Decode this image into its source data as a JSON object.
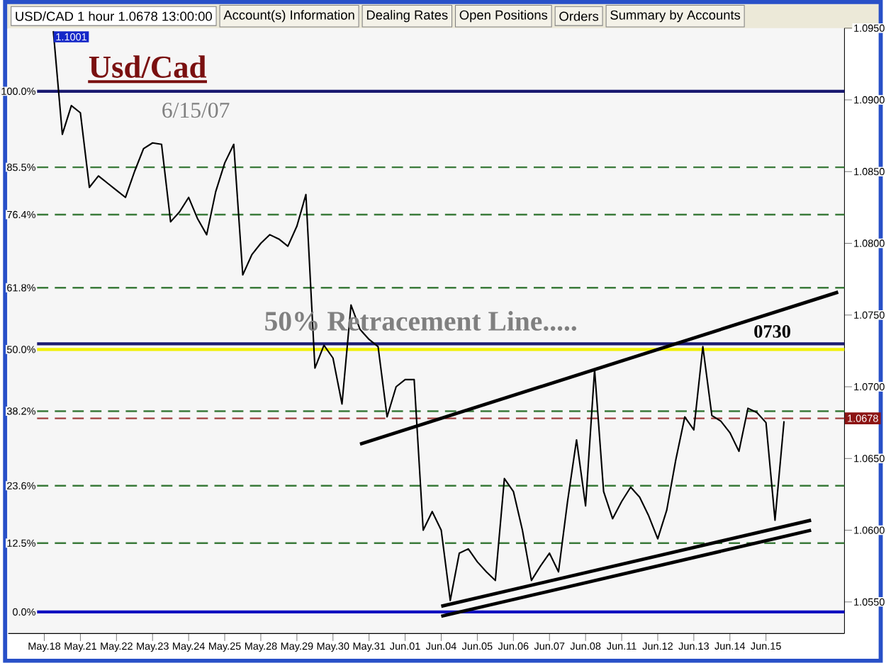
{
  "chart_data": {
    "type": "line",
    "title": "USD/CAD 1 hour 1.0678 13:00:00",
    "categories": [
      "May.18",
      null,
      null,
      null,
      "May.21",
      null,
      null,
      null,
      "May.22",
      null,
      null,
      null,
      "May.23",
      null,
      null,
      null,
      "May.24",
      null,
      null,
      null,
      "May.25",
      null,
      null,
      null,
      "May.28",
      null,
      null,
      null,
      "May.29",
      null,
      null,
      null,
      "May.30",
      null,
      null,
      null,
      "May.31",
      null,
      null,
      null,
      "Jun.01",
      null,
      null,
      null,
      "Jun.04",
      null,
      null,
      null,
      "Jun.05",
      null,
      null,
      null,
      "Jun.06",
      null,
      null,
      null,
      "Jun.07",
      null,
      null,
      null,
      "Jun.08",
      null,
      null,
      null,
      "Jun.11",
      null,
      null,
      null,
      "Jun.12",
      null,
      null,
      null,
      "Jun.13",
      null,
      null,
      null,
      "Jun.14",
      null,
      null,
      null,
      "Jun.15",
      null,
      null,
      null,
      null,
      null,
      null,
      null,
      null
    ],
    "series": [
      {
        "color": "#000000",
        "values": [
          null,
          1.0948,
          1.0876,
          1.0896,
          1.0891,
          1.0839,
          1.0847,
          1.0842,
          1.0837,
          1.0832,
          1.085,
          1.0866,
          1.087,
          1.0869,
          1.0815,
          1.0822,
          1.0832,
          1.0817,
          1.0806,
          1.0836,
          1.0856,
          1.0869,
          1.0778,
          1.0792,
          1.08,
          1.0806,
          1.0803,
          1.0798,
          1.0812,
          1.0834,
          1.0713,
          1.0729,
          1.072,
          1.0688,
          1.0757,
          1.074,
          1.0733,
          1.0728,
          1.0679,
          1.07,
          1.0705,
          1.0705,
          1.06,
          1.0613,
          1.06,
          1.0551,
          1.0584,
          1.0587,
          1.0578,
          1.0571,
          1.0565,
          1.0636,
          1.0627,
          1.06,
          1.0565,
          1.0575,
          1.0584,
          1.0571,
          1.062,
          1.0663,
          1.0617,
          1.0712,
          1.0627,
          1.0608,
          1.062,
          1.063,
          1.0623,
          1.061,
          1.0594,
          1.0614,
          1.0649,
          1.0679,
          1.067,
          1.0728,
          1.068,
          1.0676,
          1.0668,
          1.0655,
          1.0685,
          1.0682,
          1.0675,
          1.0607,
          1.0676,
          null,
          null,
          null,
          null,
          null,
          null
        ]
      },
      {
        "type": "line",
        "color": "#000000",
        "values": [
          null,
          null,
          null,
          null,
          null,
          null,
          null,
          null,
          null,
          null,
          null,
          null,
          null,
          null,
          null,
          null,
          null,
          null,
          null,
          null,
          null,
          null,
          null,
          null,
          null,
          null,
          null,
          null,
          null,
          null,
          null,
          null,
          null,
          null,
          null,
          1.066,
          null,
          null,
          null,
          null,
          null,
          null,
          null,
          null,
          null,
          null,
          null,
          null,
          null,
          null,
          null,
          null,
          null,
          null,
          null,
          null,
          null,
          null,
          null,
          null,
          null,
          null,
          null,
          null,
          null,
          null,
          null,
          null,
          null,
          null,
          null,
          null,
          null,
          null,
          null,
          null,
          null,
          null,
          null,
          null,
          null,
          null,
          null,
          null,
          null,
          null,
          null,
          null,
          1.0766
        ]
      },
      {
        "type": "line",
        "color": "#000000",
        "values": [
          null,
          null,
          null,
          null,
          null,
          null,
          null,
          null,
          null,
          null,
          null,
          null,
          null,
          null,
          null,
          null,
          null,
          null,
          null,
          null,
          null,
          null,
          null,
          null,
          null,
          null,
          null,
          null,
          null,
          null,
          null,
          null,
          null,
          null,
          null,
          null,
          null,
          null,
          null,
          null,
          null,
          null,
          null,
          null,
          1.0547,
          null,
          null,
          null,
          null,
          null,
          null,
          null,
          null,
          null,
          null,
          null,
          null,
          null,
          null,
          null,
          null,
          null,
          null,
          null,
          null,
          null,
          null,
          null,
          null,
          null,
          null,
          null,
          null,
          null,
          null,
          null,
          null,
          null,
          null,
          null,
          null,
          null,
          null,
          null,
          null,
          1.0607,
          null,
          null,
          null
        ]
      },
      {
        "type": "line",
        "color": "#000000",
        "values": [
          null,
          null,
          null,
          null,
          null,
          null,
          null,
          null,
          null,
          null,
          null,
          null,
          null,
          null,
          null,
          null,
          null,
          null,
          null,
          null,
          null,
          null,
          null,
          null,
          null,
          null,
          null,
          null,
          null,
          null,
          null,
          null,
          null,
          null,
          null,
          null,
          null,
          null,
          null,
          null,
          null,
          null,
          null,
          null,
          1.054,
          null,
          null,
          null,
          null,
          null,
          null,
          null,
          null,
          null,
          null,
          null,
          null,
          null,
          null,
          null,
          null,
          null,
          null,
          null,
          null,
          null,
          null,
          null,
          null,
          null,
          null,
          null,
          null,
          null,
          null,
          null,
          null,
          null,
          null,
          null,
          null,
          null,
          null,
          null,
          null,
          1.06,
          null,
          null,
          null
        ]
      }
    ],
    "ylim": [
      1.0528,
      1.095
    ],
    "yticks": [
      {
        "value": 1.055,
        "label": "1.0550"
      },
      {
        "value": 1.06,
        "label": "1.0600"
      },
      {
        "value": 1.065,
        "label": "1.0650"
      },
      {
        "value": 1.07,
        "label": "1.0700"
      },
      {
        "value": 1.075,
        "label": "1.0750"
      },
      {
        "value": 1.08,
        "label": "1.0800"
      },
      {
        "value": 1.085,
        "label": "1.0850"
      },
      {
        "value": 1.09,
        "label": "1.0900"
      },
      {
        "value": 1.095,
        "label": "1.0950"
      }
    ],
    "ref_lines": [
      {
        "axis": "y",
        "value": 1.0906,
        "color": "#1a1a70",
        "line_style": "solid"
      },
      {
        "axis": "y",
        "value": 1.0853,
        "color": "#3a7a3a",
        "line_style": "dashed"
      },
      {
        "axis": "y",
        "value": 1.082,
        "color": "#3a7a3a",
        "line_style": "dashed"
      },
      {
        "axis": "y",
        "value": 1.0769,
        "color": "#3a7a3a",
        "line_style": "dashed"
      },
      {
        "axis": "y",
        "value": 1.0726,
        "color": "#f0f000",
        "line_style": "solid"
      },
      {
        "axis": "y",
        "value": 1.073,
        "color": "#1a1a70",
        "line_style": "solid"
      },
      {
        "axis": "y",
        "value": 1.0683,
        "color": "#3a7a3a",
        "line_style": "dashed"
      },
      {
        "axis": "y",
        "value": 1.0678,
        "color": "#a04040",
        "line_style": "dashed"
      },
      {
        "axis": "y",
        "value": 1.0631,
        "color": "#3a7a3a",
        "line_style": "dashed"
      },
      {
        "axis": "y",
        "value": 1.0591,
        "color": "#3a7a3a",
        "line_style": "dashed"
      },
      {
        "axis": "y",
        "value": 1.0543,
        "color": "#1010c0",
        "line_style": "solid"
      }
    ],
    "annotations": [
      "Account(s) Information",
      "Dealing Rates",
      "Open Positions",
      "Orders",
      "Summary by Accounts",
      "Usd/Cad",
      "6/15/07",
      "50% Retracement Line.....",
      "100.0%",
      "85.5%",
      "76.4%",
      "61.8%",
      "50.0%",
      "38.2%",
      "23.6%",
      "12.5%",
      "0.0%",
      "1.1001",
      {
        "text": "0730",
        "y": 1.073
      },
      {
        "text": "1.0678",
        "y": 1.0678
      }
    ]
  }
}
